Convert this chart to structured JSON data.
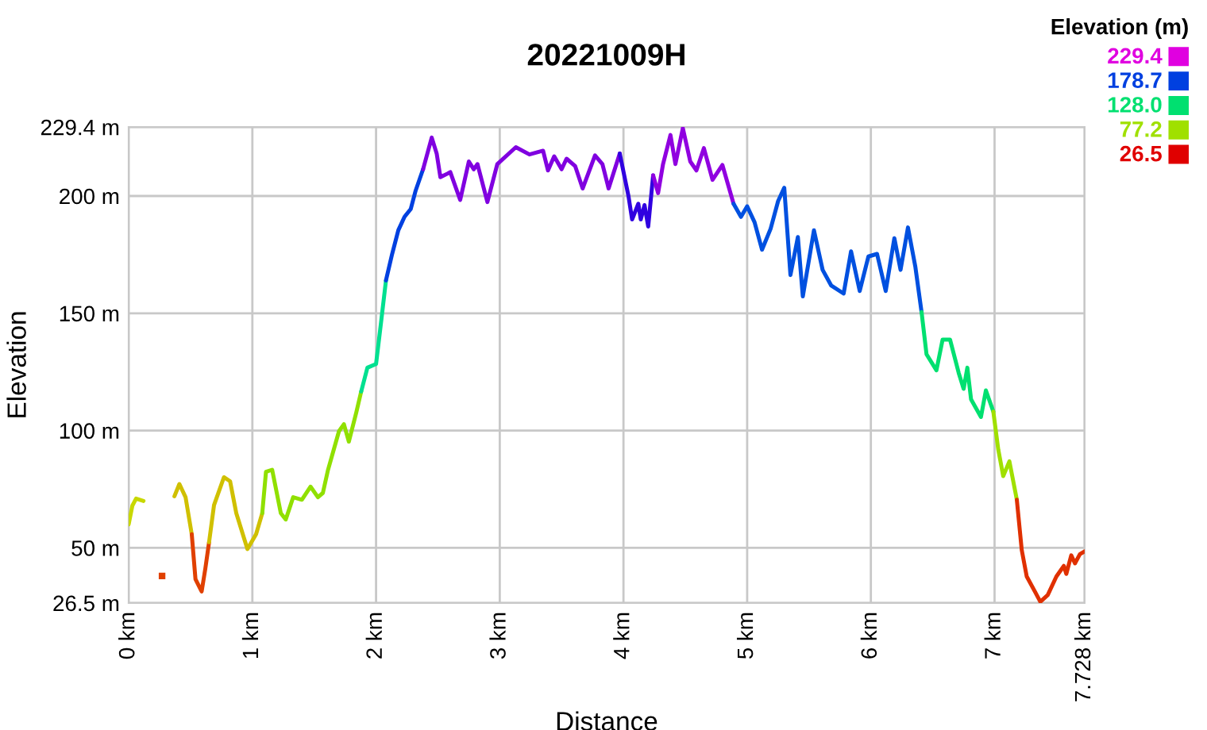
{
  "chart_data": {
    "type": "line",
    "title": "20221009H",
    "xlabel": "Distance",
    "ylabel": "Elevation",
    "clabel": "Elevation (m)",
    "cticks": [
      {
        "value": 229.4,
        "label": "229.4"
      },
      {
        "value": 178.7,
        "label": "178.7"
      },
      {
        "value": 128.0,
        "label": "128.0"
      },
      {
        "value": 77.2,
        "label": "77.2"
      },
      {
        "value": 26.5,
        "label": "26.5"
      }
    ],
    "colors": [
      "#e000e0",
      "#0040e0",
      "#00e070",
      "#a0e000",
      "#e00000"
    ],
    "xlim": [
      0,
      7.728
    ],
    "ylim": [
      26.5,
      229.4
    ],
    "xticks": [
      {
        "value": 0,
        "label": "0 km"
      },
      {
        "value": 1,
        "label": "1 km"
      },
      {
        "value": 2,
        "label": "2 km"
      },
      {
        "value": 3,
        "label": "3 km"
      },
      {
        "value": 4,
        "label": "4 km"
      },
      {
        "value": 5,
        "label": "5 km"
      },
      {
        "value": 6,
        "label": "6 km"
      },
      {
        "value": 7,
        "label": "7 km"
      },
      {
        "value": 7.728,
        "label": "7.728 km"
      }
    ],
    "yticks": [
      {
        "value": 26.5,
        "label": "26.5 m"
      },
      {
        "value": 50,
        "label": "50 m"
      },
      {
        "value": 100,
        "label": "100 m"
      },
      {
        "value": 150,
        "label": "150 m"
      },
      {
        "value": 200,
        "label": "200 m"
      },
      {
        "value": 229.4,
        "label": "229.4 m"
      }
    ],
    "grid": true,
    "series": [
      {
        "color": "#c8d800",
        "x": [
          0,
          0.03,
          0.06,
          0.12
        ],
        "values": [
          60,
          68,
          71,
          70
        ]
      },
      {
        "type": "scatter",
        "color": "#e04000",
        "x": [
          0.27
        ],
        "values": [
          38
        ]
      },
      {
        "color": "#d0c000",
        "x": [
          0.37,
          0.41,
          0.46,
          0.51
        ],
        "values": [
          72.0,
          77.2,
          71.6,
          55.8
        ]
      },
      {
        "color": "#e04000",
        "x": [
          0.51,
          0.54,
          0.59,
          0.62,
          0.65
        ],
        "values": [
          55.8,
          36.7,
          31.4,
          41.2,
          52.4
        ]
      },
      {
        "color": "#d0c000",
        "x": [
          0.65,
          0.69,
          0.77,
          0.82,
          0.87,
          0.96,
          1.03,
          1.08
        ],
        "values": [
          52.4,
          68.2,
          80.1,
          78.4,
          64.8,
          49.5,
          55.8,
          64.8
        ]
      },
      {
        "color": "#90e000",
        "x": [
          1.08,
          1.11,
          1.16,
          1.23,
          1.27,
          1.33,
          1.4,
          1.47,
          1.53,
          1.57,
          1.61,
          1.7,
          1.74,
          1.78,
          1.84,
          1.88
        ],
        "values": [
          64.8,
          82.4,
          83.3,
          64.8,
          62.1,
          71.6,
          70.5,
          76.1,
          71.6,
          73.4,
          82.9,
          99.7,
          102.7,
          95.3,
          107.7,
          116.7
        ]
      },
      {
        "color": "#00e090",
        "x": [
          1.88,
          1.93,
          2.0,
          2.04,
          2.08
        ],
        "values": [
          116.7,
          126.8,
          128.4,
          146.0,
          164.0
        ]
      },
      {
        "color": "#0040e0",
        "x": [
          2.08,
          2.13,
          2.18,
          2.23,
          2.28,
          2.32,
          2.38
        ],
        "values": [
          164.0,
          175.3,
          185.4,
          191.1,
          194.4,
          202.3,
          211.4
        ]
      },
      {
        "color": "#8000e0",
        "x": [
          2.38,
          2.45,
          2.49,
          2.52,
          2.58,
          2.6,
          2.68,
          2.75,
          2.79,
          2.82,
          2.9,
          2.98,
          3.13,
          3.24,
          3.35,
          3.39,
          3.44,
          3.5,
          3.54,
          3.61,
          3.67,
          3.77,
          3.83,
          3.88,
          3.97
        ],
        "values": [
          211.4,
          224.9,
          218.1,
          208.0,
          209.6,
          210.2,
          198.3,
          214.7,
          211.4,
          213.6,
          197.4,
          213.6,
          220.8,
          217.7,
          219.3,
          210.9,
          216.9,
          211.4,
          215.9,
          212.7,
          203.2,
          217.3,
          213.6,
          203.2,
          218.1
        ]
      },
      {
        "color": "#3000e0",
        "x": [
          3.97,
          4.04,
          4.07,
          4.12,
          4.14,
          4.17,
          4.2,
          4.24
        ],
        "values": [
          218.1,
          200.1,
          190.0,
          196.7,
          190.0,
          196.1,
          187.0,
          208.8
        ]
      },
      {
        "color": "#9000e0",
        "x": [
          4.24,
          4.28,
          4.32,
          4.38,
          4.42,
          4.48,
          4.54,
          4.59,
          4.65,
          4.72,
          4.8,
          4.89
        ],
        "values": [
          208.8,
          201.2,
          213.6,
          226.0,
          213.6,
          228.9,
          214.7,
          210.9,
          220.4,
          206.9,
          213.2,
          196.7
        ]
      },
      {
        "color": "#0050e0",
        "x": [
          4.89,
          4.95,
          5.0,
          5.06,
          5.12,
          5.19,
          5.25,
          5.3,
          5.35,
          5.41,
          5.45,
          5.54,
          5.61,
          5.68,
          5.78,
          5.84,
          5.91,
          5.98,
          6.05,
          6.12,
          6.19,
          6.24,
          6.3,
          6.36,
          6.41
        ],
        "values": [
          196.7,
          191.1,
          195.6,
          188.8,
          177.1,
          186.1,
          197.8,
          203.5,
          166.3,
          182.5,
          157.2,
          185.4,
          168.5,
          161.8,
          158.4,
          176.4,
          159.5,
          174.2,
          175.3,
          159.5,
          182.0,
          168.5,
          186.6,
          169.7,
          150.5
        ]
      },
      {
        "color": "#00e070",
        "x": [
          6.41,
          6.45,
          6.53,
          6.58,
          6.64,
          6.71,
          6.75,
          6.78,
          6.81,
          6.89,
          6.93,
          6.99
        ],
        "values": [
          150.5,
          132.5,
          125.7,
          138.8,
          138.8,
          124.6,
          117.8,
          126.8,
          113.3,
          105.8,
          117.1,
          108.1
        ]
      },
      {
        "color": "#a0e000",
        "x": [
          6.99,
          7.03,
          7.07,
          7.12,
          7.18
        ],
        "values": [
          108.1,
          91.9,
          80.6,
          86.9,
          70.5
        ]
      },
      {
        "color": "#e03000",
        "x": [
          7.18,
          7.22,
          7.26,
          7.33,
          7.37,
          7.43,
          7.5,
          7.56,
          7.58,
          7.62,
          7.65,
          7.69,
          7.728
        ],
        "values": [
          70.5,
          49.0,
          37.8,
          31.0,
          27.0,
          29.9,
          37.8,
          42.3,
          38.9,
          46.8,
          43.4,
          47.3,
          48.5
        ]
      }
    ]
  }
}
